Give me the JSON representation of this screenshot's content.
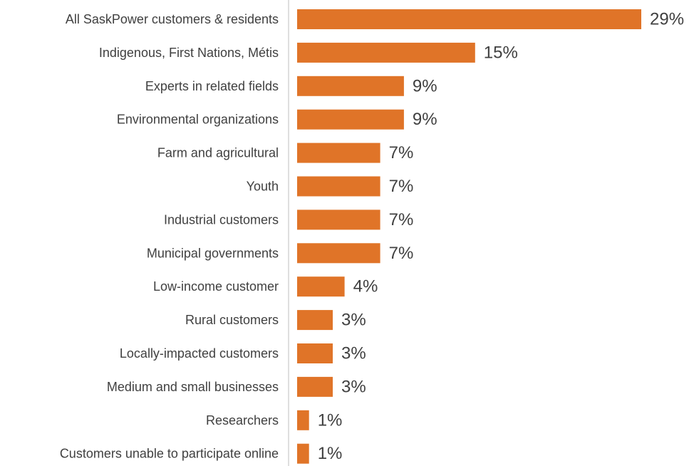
{
  "chart_data": {
    "type": "bar",
    "orientation": "horizontal",
    "title": "",
    "xlabel": "",
    "ylabel": "",
    "xlim": [
      0,
      29
    ],
    "grid": false,
    "legend": "none",
    "bar_color": "#E07428",
    "axis_color": "#BFBFBF",
    "text_color": "#404040",
    "value_suffix": "%",
    "categories": [
      "All SaskPower customers & residents",
      "Indigenous, First Nations, Métis",
      "Experts in related fields",
      "Environmental organizations",
      "Farm and agricultural",
      "Youth",
      "Industrial customers",
      "Municipal governments",
      "Low-income customer",
      "Rural customers",
      "Locally-impacted customers",
      "Medium and small businesses",
      "Researchers",
      "Customers unable to participate online"
    ],
    "values": [
      29,
      15,
      9,
      9,
      7,
      7,
      7,
      7,
      4,
      3,
      3,
      3,
      1,
      1
    ]
  }
}
